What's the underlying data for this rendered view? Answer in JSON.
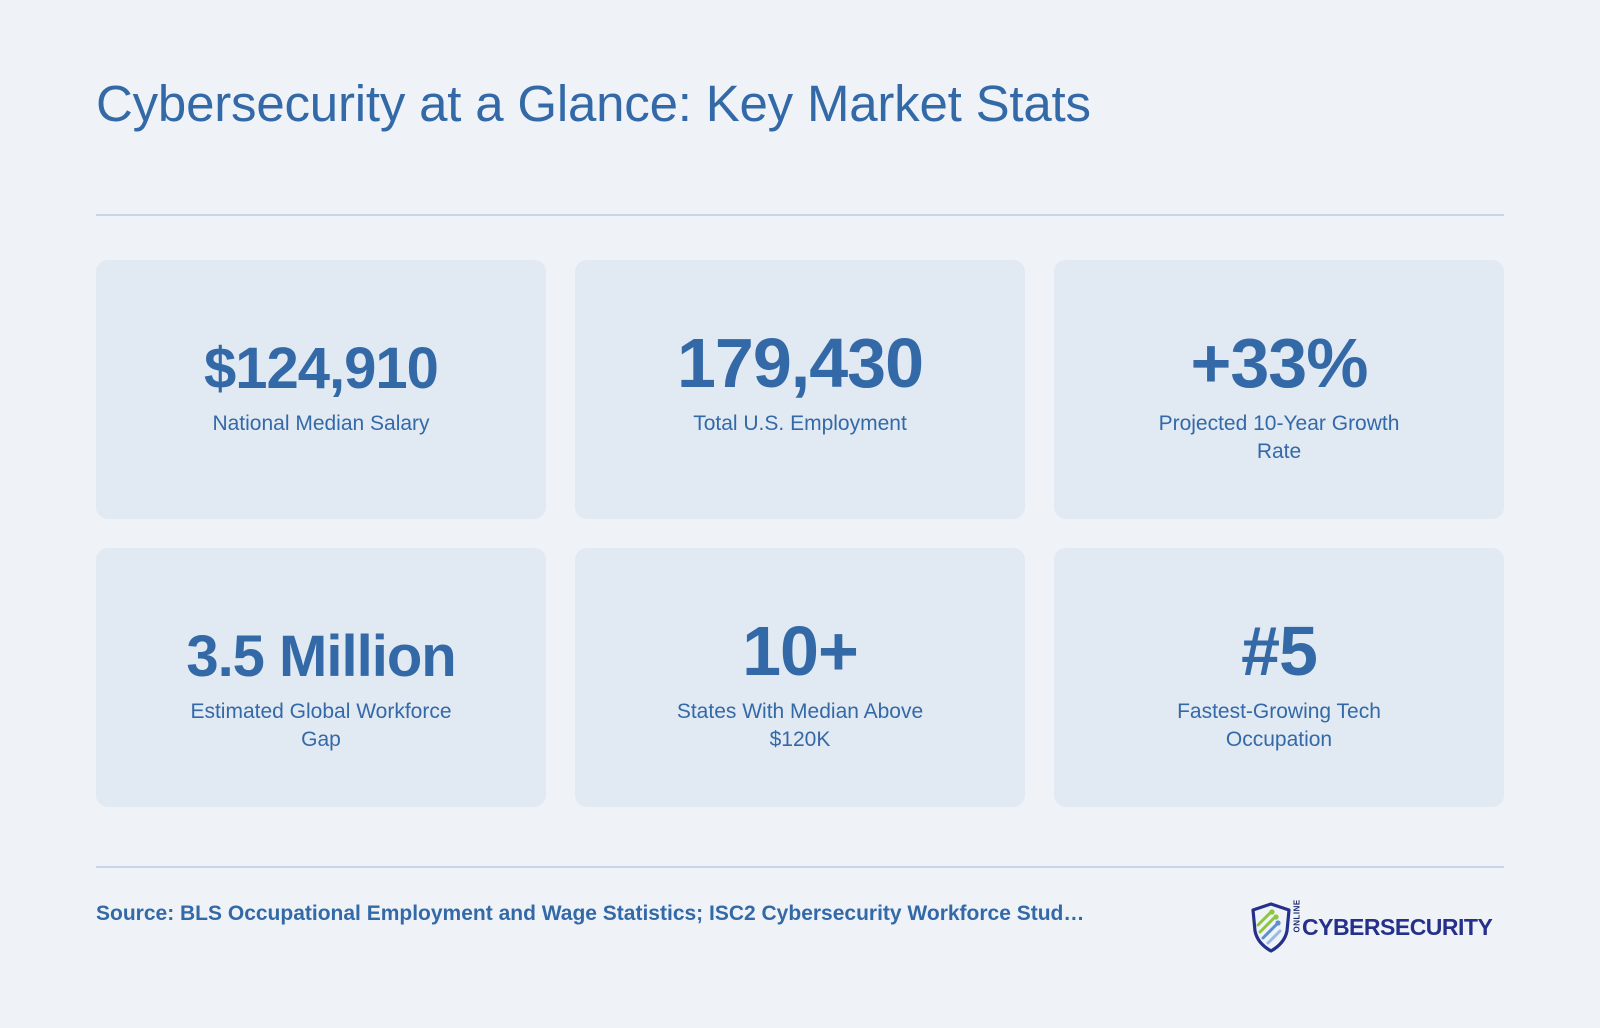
{
  "title": "Cybersecurity at a Glance: Key Market Stats",
  "stats": [
    {
      "value": "$124,910",
      "label": "National Median Salary"
    },
    {
      "value": "179,430",
      "label": "Total U.S. Employment"
    },
    {
      "value": "+33%",
      "label": "Projected 10-Year Growth Rate"
    },
    {
      "value": "3.5 Million",
      "label": "Estimated Global Workforce Gap"
    },
    {
      "value": "10+",
      "label": "States With Median Above $120K"
    },
    {
      "value": "#5",
      "label": "Fastest-Growing Tech Occupation"
    }
  ],
  "footer": {
    "source": "Source: BLS Occupational Employment and Wage Statistics; ISC2 Cybersecurity Workforce Stud…"
  },
  "logo": {
    "small_text": "ONLINE",
    "text": "CYBERSECURITY",
    "icon": "shield-circuit-icon"
  },
  "colors": {
    "background": "#eff3f8",
    "card": "#e1e9f2",
    "accent": "#3469a8",
    "divider": "#c5d6ea",
    "logo_navy": "#25308a",
    "logo_green": "#8cc63f"
  }
}
